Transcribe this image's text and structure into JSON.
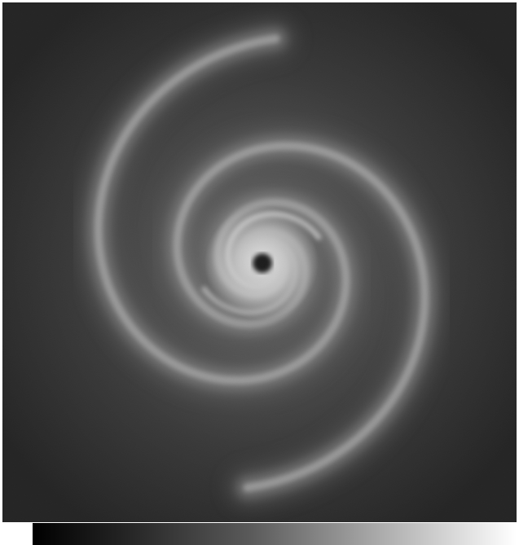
{
  "image": {
    "subject": "spiral-galaxy-simulation",
    "colormap": [
      "#000000",
      "#ffffff"
    ],
    "arms": 2
  },
  "colorbar": {
    "colors": [
      "#000000",
      "#262626",
      "#5a5a5a",
      "#a6a6a6",
      "#ffffff"
    ]
  }
}
